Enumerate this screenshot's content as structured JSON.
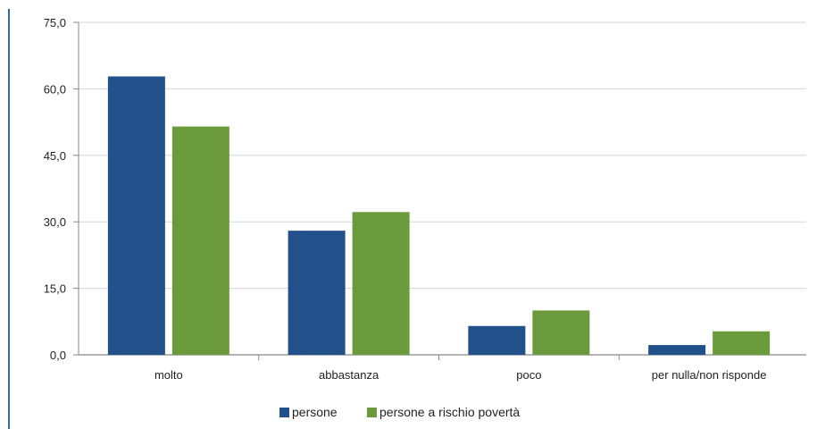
{
  "chart_data": {
    "type": "bar",
    "title": "",
    "xlabel": "",
    "ylabel": "",
    "categories": [
      "molto",
      "abbastanza",
      "poco",
      "per nulla/non risponde"
    ],
    "series": [
      {
        "name": "persone",
        "color": "#21508a",
        "values": [
          62.8,
          28.0,
          6.5,
          2.2
        ]
      },
      {
        "name": "persone a rischio povertà",
        "color": "#6b9a3c",
        "values": [
          51.5,
          32.2,
          10.0,
          5.3
        ]
      }
    ],
    "ylim": [
      0,
      75
    ],
    "yticks": [
      "0,0",
      "15,0",
      "30,0",
      "45,0",
      "60,0",
      "75,0"
    ],
    "ytick_values": [
      0,
      15,
      30,
      45,
      60,
      75
    ],
    "grid": true,
    "legend": "bottom-center"
  }
}
